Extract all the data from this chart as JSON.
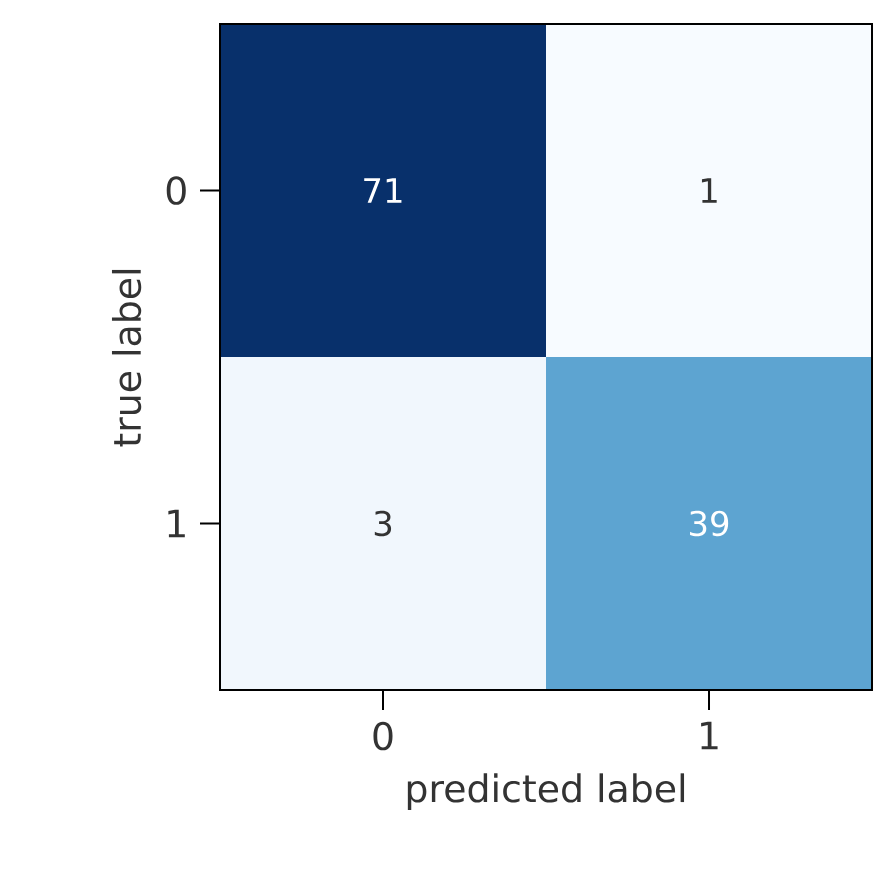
{
  "chart_data": {
    "type": "heatmap",
    "xlabel": "predicted label",
    "ylabel": "true label",
    "data_labels": true,
    "categories": [
      "0",
      "1"
    ],
    "y_categories": [
      "0",
      "1"
    ],
    "cells": [
      [
        71,
        1
      ],
      [
        3,
        39
      ]
    ]
  }
}
